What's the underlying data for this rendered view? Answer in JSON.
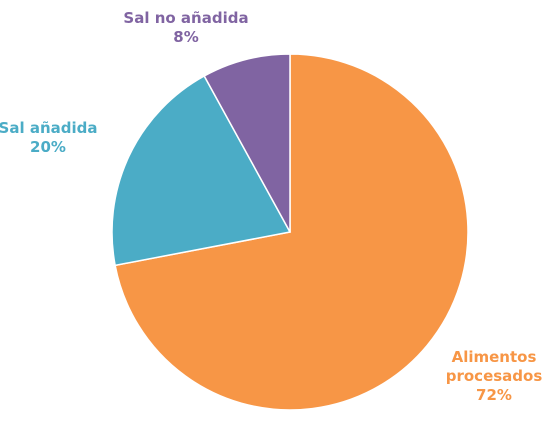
{
  "chart_data": {
    "type": "pie",
    "title": "",
    "start_angle_deg": 0,
    "direction": "clockwise",
    "slices": [
      {
        "name": "Alimentos procesados",
        "label_lines": [
          "Alimentos",
          "procesados"
        ],
        "value": 72,
        "value_label": "72%",
        "color": "#F79646"
      },
      {
        "name": "Sal añadida",
        "label_lines": [
          "Sal añadida"
        ],
        "value": 20,
        "value_label": "20%",
        "color": "#4BACC6"
      },
      {
        "name": "Sal no añadida",
        "label_lines": [
          "Sal no añadida"
        ],
        "value": 8,
        "value_label": "8%",
        "color": "#8064A2"
      }
    ],
    "label_colors": [
      "#F79646",
      "#4BACC6",
      "#8064A2"
    ],
    "legend": "none",
    "slice_border_color": "#ffffff"
  }
}
